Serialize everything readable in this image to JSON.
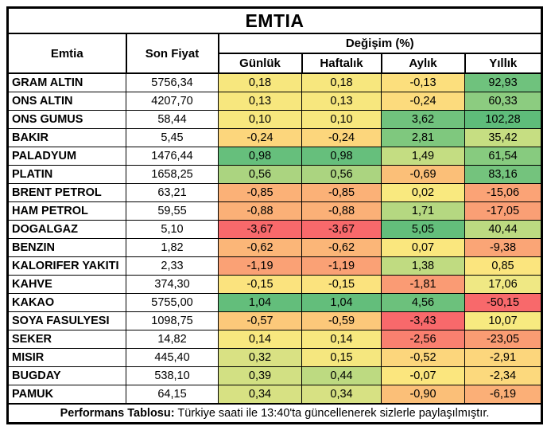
{
  "chart_data": {
    "type": "table",
    "title": "EMTIA",
    "columns": {
      "emtia": "Emtia",
      "son_fiyat": "Son Fiyat",
      "degisim": "Değişim (%)",
      "sub": [
        "Günlük",
        "Haftalık",
        "Aylık",
        "Yıllık"
      ]
    },
    "rows": [
      {
        "name": "GRAM ALTIN",
        "price": "5756,34",
        "changes": [
          "0,18",
          "0,18",
          "-0,13",
          "92,93"
        ],
        "colors": [
          "#F7E77E",
          "#F7E77E",
          "#FCDF7D",
          "#6FC27D"
        ]
      },
      {
        "name": "ONS ALTIN",
        "price": "4207,70",
        "changes": [
          "0,13",
          "0,13",
          "-0,24",
          "60,33"
        ],
        "colors": [
          "#F7E77E",
          "#F7E77E",
          "#FCDB7D",
          "#8CCC80"
        ]
      },
      {
        "name": "ONS GUMUS",
        "price": "58,44",
        "changes": [
          "0,10",
          "0,10",
          "3,62",
          "102,28"
        ],
        "colors": [
          "#F7E77E",
          "#F7E77E",
          "#70C27D",
          "#5EBC7A"
        ]
      },
      {
        "name": "BAKIR",
        "price": "5,45",
        "changes": [
          "-0,24",
          "-0,24",
          "2,81",
          "35,42"
        ],
        "colors": [
          "#FCD67C",
          "#FCD67C",
          "#7FC87E",
          "#C6DE82"
        ]
      },
      {
        "name": "PALADYUM",
        "price": "1476,44",
        "changes": [
          "0,98",
          "0,98",
          "1,49",
          "61,54"
        ],
        "colors": [
          "#66BF7C",
          "#66BF7C",
          "#C4DD82",
          "#87CB7F"
        ]
      },
      {
        "name": "PLATIN",
        "price": "1658,25",
        "changes": [
          "0,56",
          "0,56",
          "-0,69",
          "83,16"
        ],
        "colors": [
          "#ABD480",
          "#ABD480",
          "#FBBF78",
          "#74C37D"
        ]
      },
      {
        "name": "BRENT PETROL",
        "price": "63,21",
        "changes": [
          "-0,85",
          "-0,85",
          "0,02",
          "-15,06"
        ],
        "colors": [
          "#FBB177",
          "#FBB177",
          "#F9E97F",
          "#FBA376"
        ]
      },
      {
        "name": "HAM PETROL",
        "price": "59,55",
        "changes": [
          "-0,88",
          "-0,88",
          "1,71",
          "-17,05"
        ],
        "colors": [
          "#FBB077",
          "#FBB077",
          "#B5D881",
          "#FA9F75"
        ]
      },
      {
        "name": "DOGALGAZ",
        "price": "5,10",
        "changes": [
          "-3,67",
          "-3,67",
          "5,05",
          "40,44"
        ],
        "colors": [
          "#F8696B",
          "#F8696B",
          "#63BE7B",
          "#BCDA81"
        ]
      },
      {
        "name": "BENZIN",
        "price": "1,82",
        "changes": [
          "-0,62",
          "-0,62",
          "0,07",
          "-9,38"
        ],
        "colors": [
          "#FBB678",
          "#FBB678",
          "#FAE77E",
          "#FAA576"
        ]
      },
      {
        "name": "KALORIFER YAKITI",
        "price": "2,33",
        "changes": [
          "-1,19",
          "-1,19",
          "1,38",
          "0,85"
        ],
        "colors": [
          "#FAA175",
          "#FAA175",
          "#C0DB81",
          "#FBE57E"
        ]
      },
      {
        "name": "KAHVE",
        "price": "374,30",
        "changes": [
          "-0,15",
          "-0,15",
          "-1,81",
          "17,06"
        ],
        "colors": [
          "#FBE37E",
          "#FBE37E",
          "#FA9B74",
          "#EFE884"
        ]
      },
      {
        "name": "KAKAO",
        "price": "5755,00",
        "changes": [
          "1,04",
          "1,04",
          "4,56",
          "-50,15"
        ],
        "colors": [
          "#63BE7B",
          "#63BE7B",
          "#6CC17C",
          "#F8696B"
        ]
      },
      {
        "name": "SOYA FASULYESI",
        "price": "1098,75",
        "changes": [
          "-0,57",
          "-0,59",
          "-3,43",
          "10,07"
        ],
        "colors": [
          "#FCC97A",
          "#FCC87A",
          "#F8696B",
          "#F7EA80"
        ]
      },
      {
        "name": "SEKER",
        "price": "14,82",
        "changes": [
          "0,14",
          "0,14",
          "-2,56",
          "-23,05"
        ],
        "colors": [
          "#F8E87F",
          "#F8E87F",
          "#F9806F",
          "#FA9C73"
        ]
      },
      {
        "name": "MISIR",
        "price": "445,40",
        "changes": [
          "0,32",
          "0,15",
          "-0,52",
          "-2,91"
        ],
        "colors": [
          "#D9E183",
          "#F5E77F",
          "#FCD67C",
          "#FCD67C"
        ]
      },
      {
        "name": "BUGDAY",
        "price": "538,10",
        "changes": [
          "0,39",
          "0,44",
          "-0,07",
          "-2,34"
        ],
        "colors": [
          "#D2E083",
          "#BDDA81",
          "#FBE67E",
          "#FCD97D"
        ]
      },
      {
        "name": "PAMUK",
        "price": "64,15",
        "changes": [
          "0,34",
          "0,34",
          "-0,90",
          "-6,19"
        ],
        "colors": [
          "#D7E183",
          "#D7E183",
          "#FBBF78",
          "#FBAF77"
        ]
      }
    ],
    "footer": {
      "bold": "Performans Tablosu:",
      "text": "Türkiye saati ile 13:40'ta güncellenerek sizlerle paylaşılmıştır."
    },
    "palette": {
      "negative_strong": "#F8696B",
      "neutral": "#FFEB84",
      "positive_strong": "#63BE7B",
      "border": "#000000",
      "background": "#FFFFFF"
    },
    "layout": {
      "legend": "conditional red-yellow-green color scale on change cells",
      "grid": "on"
    }
  }
}
